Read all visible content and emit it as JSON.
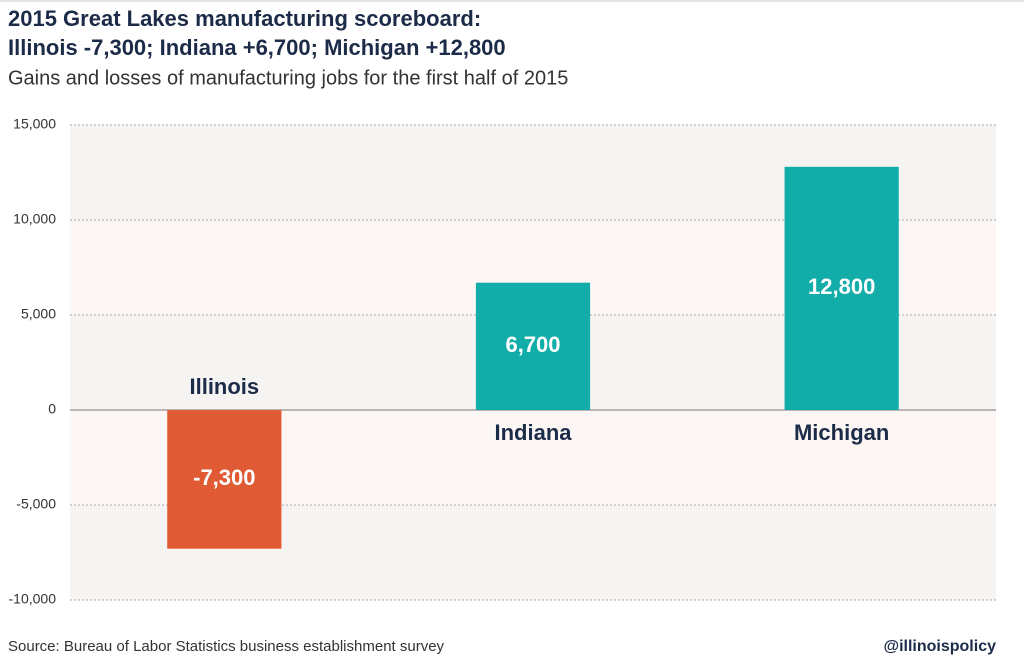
{
  "chart_data": {
    "type": "bar",
    "title": [
      "2015 Great Lakes manufacturing scoreboard:",
      "Illinois -7,300; Indiana +6,700; Michigan +12,800"
    ],
    "subtitle": "Gains and losses of manufacturing jobs for the first half of 2015",
    "categories": [
      "Illinois",
      "Indiana",
      "Michigan"
    ],
    "values": [
      -7300,
      6700,
      12800
    ],
    "value_labels": [
      "-7,300",
      "6,700",
      "12,800"
    ],
    "colors": [
      "#e05a33",
      "#12ada8",
      "#12ada8"
    ],
    "ylim": [
      -10000,
      15000
    ],
    "yticks": [
      {
        "value": -10000,
        "label": "-10,000"
      },
      {
        "value": -5000,
        "label": "-5,000"
      },
      0,
      {
        "value": 5000,
        "label": "5,000"
      },
      {
        "value": 10000,
        "label": "10,000"
      },
      {
        "value": 15000,
        "label": "15,000"
      }
    ],
    "grid": true,
    "source": "Source: Bureau of Labor Statistics business establishment survey",
    "credit": "@illinoispolicy"
  }
}
